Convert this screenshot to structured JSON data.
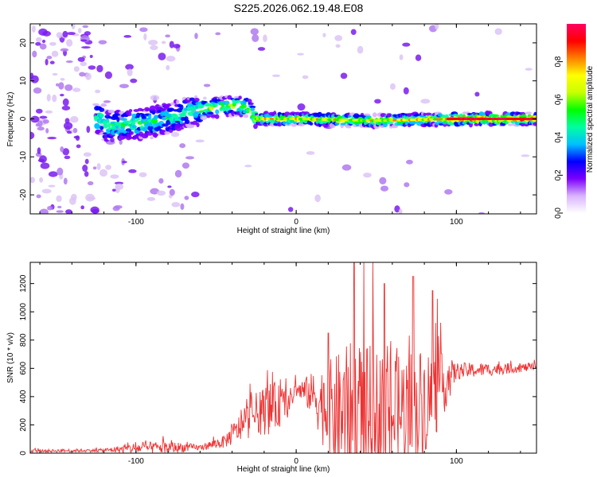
{
  "title": "S225.2026.062.19.48.E08",
  "chart_data": [
    {
      "type": "heatmap",
      "xlabel": "Height of straight line (km)",
      "ylabel": "Frequency (Hz)",
      "xlim": [
        -166,
        150
      ],
      "ylim": [
        -25,
        25
      ],
      "xticks": [
        -100,
        0,
        100
      ],
      "yticks": [
        -20,
        -10,
        0,
        10,
        20
      ],
      "colorbar": {
        "label": "Normalized spectral amplitude",
        "range": [
          0,
          1
        ],
        "ticks": [
          "0.0",
          "0.2",
          "0.4",
          "0.6",
          "0.8"
        ],
        "colors": [
          "#ffffff",
          "#d9b3ff",
          "#7b00ff",
          "#0000ff",
          "#00c0ff",
          "#00ffa0",
          "#00ff00",
          "#c8ff00",
          "#ffff00",
          "#ff8000",
          "#ff0000",
          "#ff0060"
        ]
      },
      "ridge": [
        {
          "x": -120,
          "f": -2
        },
        {
          "x": -90,
          "f": -1
        },
        {
          "x": -60,
          "f": 2.5
        },
        {
          "x": -40,
          "f": 3.5
        },
        {
          "x": -30,
          "f": 3
        },
        {
          "x": -25,
          "f": 0
        },
        {
          "x": 0,
          "f": 0
        },
        {
          "x": 50,
          "f": -0.5
        },
        {
          "x": 100,
          "f": 0
        },
        {
          "x": 150,
          "f": 0
        }
      ]
    },
    {
      "type": "line",
      "xlabel": "Height of straight line (km)",
      "ylabel": "SNR (10 * v/v)",
      "xlim": [
        -166,
        150
      ],
      "ylim": [
        0,
        1350
      ],
      "xticks": [
        -100,
        0,
        100
      ],
      "yticks": [
        0,
        200,
        400,
        600,
        800,
        1000,
        1200
      ],
      "series": [
        {
          "name": "SNR",
          "color": "#ee3333",
          "envelope": [
            {
              "x": -166,
              "base": 15,
              "amp": 20
            },
            {
              "x": -120,
              "base": 20,
              "amp": 25
            },
            {
              "x": -100,
              "base": 35,
              "amp": 80
            },
            {
              "x": -80,
              "base": 40,
              "amp": 90
            },
            {
              "x": -60,
              "base": 40,
              "amp": 40
            },
            {
              "x": -45,
              "base": 80,
              "amp": 90
            },
            {
              "x": -35,
              "base": 180,
              "amp": 200
            },
            {
              "x": -25,
              "base": 280,
              "amp": 300
            },
            {
              "x": -15,
              "base": 320,
              "amp": 380
            },
            {
              "x": -5,
              "base": 350,
              "amp": 200
            },
            {
              "x": 0,
              "base": 450,
              "amp": 100
            },
            {
              "x": 10,
              "base": 420,
              "amp": 300
            },
            {
              "x": 20,
              "base": 300,
              "amp": 700
            },
            {
              "x": 35,
              "base": 250,
              "amp": 1100
            },
            {
              "x": 50,
              "base": 250,
              "amp": 1000
            },
            {
              "x": 70,
              "base": 300,
              "amp": 900
            },
            {
              "x": 85,
              "base": 400,
              "amp": 700
            },
            {
              "x": 100,
              "base": 580,
              "amp": 120
            },
            {
              "x": 150,
              "base": 610,
              "amp": 50
            }
          ],
          "peaks": [
            {
              "x": 20,
              "y": 850
            },
            {
              "x": 36,
              "y": 1350
            },
            {
              "x": 55,
              "y": 1200
            },
            {
              "x": 73,
              "y": 1250
            },
            {
              "x": 85,
              "y": 1150
            }
          ]
        }
      ]
    }
  ]
}
